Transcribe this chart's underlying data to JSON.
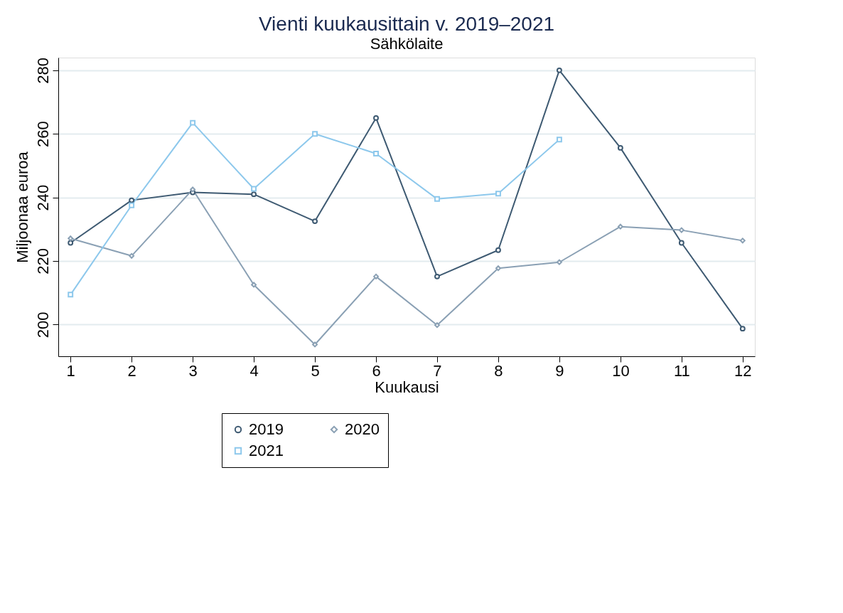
{
  "chart_data": {
    "type": "line",
    "title": "Vienti kuukausittain v. 2019–2021",
    "subtitle": "Sähkölaite",
    "xlabel": "Kuukausi",
    "ylabel": "Miljoonaa euroa",
    "x": [
      1,
      2,
      3,
      4,
      5,
      6,
      7,
      8,
      9,
      10,
      11,
      12
    ],
    "series": [
      {
        "name": "2019",
        "color": "#3e5a72",
        "marker": "circle",
        "values": [
          225.7,
          239.1,
          241.6,
          241.0,
          232.5,
          265.0,
          215.1,
          223.4,
          280.0,
          255.6,
          225.7,
          198.7
        ]
      },
      {
        "name": "2020",
        "color": "#8aa0b4",
        "marker": "diamond",
        "values": [
          227.1,
          221.6,
          242.5,
          212.5,
          193.7,
          215.1,
          199.8,
          217.7,
          219.6,
          230.8,
          229.7,
          226.4
        ]
      },
      {
        "name": "2021",
        "color": "#8dc8ec",
        "marker": "square",
        "values": [
          209.4,
          237.5,
          263.5,
          242.7,
          260.0,
          253.8,
          239.5,
          241.2,
          258.2,
          null,
          null,
          null
        ]
      }
    ],
    "xlim": [
      0.8,
      12.2
    ],
    "xticks": [
      1,
      2,
      3,
      4,
      5,
      6,
      7,
      8,
      9,
      10,
      11,
      12
    ],
    "ylim": [
      190,
      284
    ],
    "yticks": [
      200,
      220,
      240,
      260,
      280
    ],
    "grid": "y",
    "legend": "bottom",
    "line_style": "solid"
  }
}
